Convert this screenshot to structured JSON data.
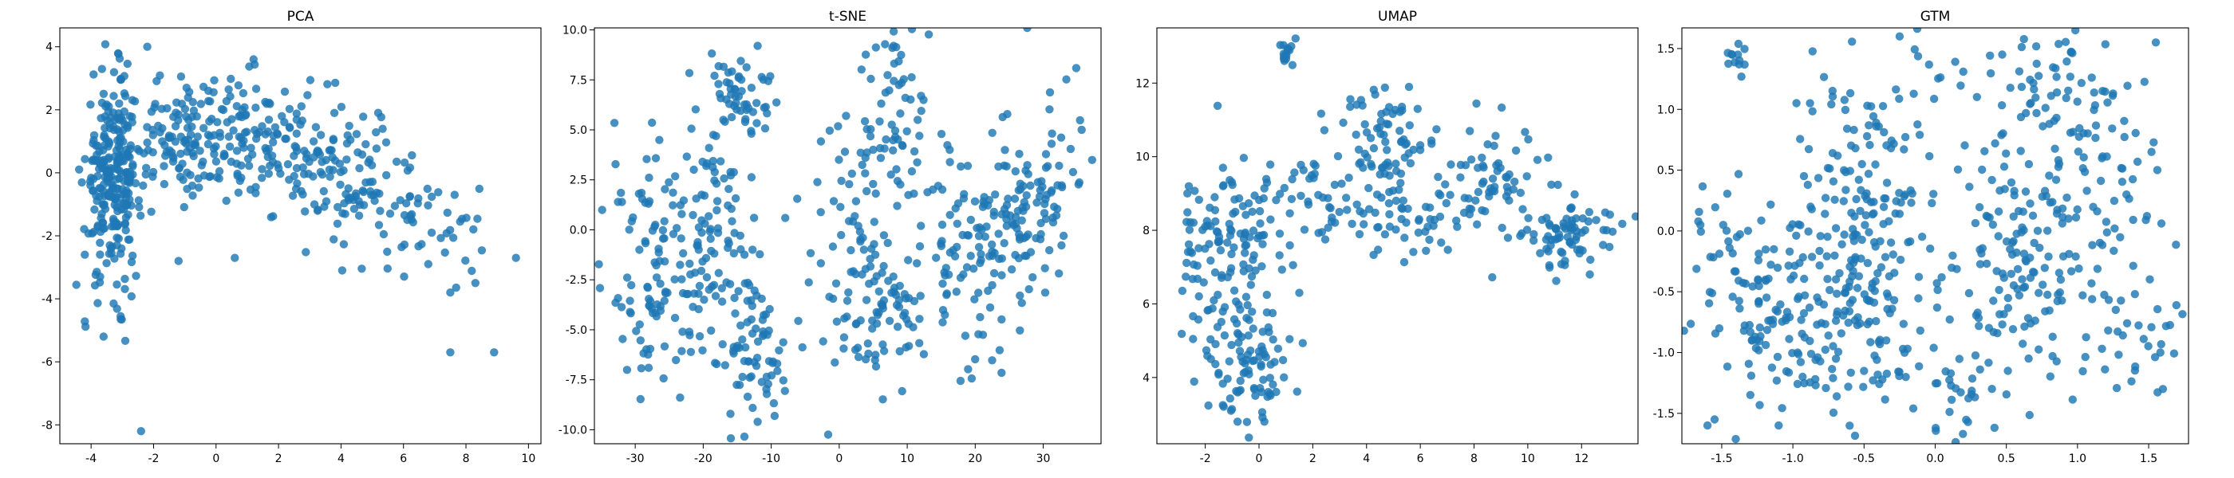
{
  "chart_data": [
    {
      "type": "scatter",
      "title": "PCA",
      "xlabel": "",
      "ylabel": "",
      "xlim": [
        -5,
        10.4
      ],
      "ylim": [
        -8.6,
        4.6
      ],
      "xticks": [
        -4,
        -2,
        0,
        2,
        4,
        6,
        8,
        10
      ],
      "yticks": [
        -8,
        -6,
        -4,
        -2,
        0,
        2,
        4
      ],
      "grid": false,
      "marker_color": "#1f77b4",
      "clusters": [
        {
          "cx": -3.3,
          "cy": -0.3,
          "sx": 0.45,
          "sy": 1.6,
          "n": 260
        },
        {
          "cx": -1.0,
          "cy": 1.1,
          "sx": 1.2,
          "sy": 0.9,
          "n": 120
        },
        {
          "cx": 1.2,
          "cy": 1.2,
          "sx": 1.2,
          "sy": 1.0,
          "n": 120
        },
        {
          "cx": 4.0,
          "cy": -0.1,
          "sx": 1.3,
          "sy": 1.0,
          "n": 110
        },
        {
          "cx": 6.6,
          "cy": -1.8,
          "sx": 1.1,
          "sy": 0.9,
          "n": 45
        }
      ],
      "points": [
        {
          "x": -2.4,
          "y": -8.2
        },
        {
          "x": 7.5,
          "y": -5.7
        },
        {
          "x": 8.9,
          "y": -5.7
        },
        {
          "x": -3.6,
          "y": -5.2
        },
        {
          "x": 9.6,
          "y": -2.7
        },
        {
          "x": -2.2,
          "y": 4.0
        },
        {
          "x": 1.2,
          "y": 3.6
        },
        {
          "x": 7.5,
          "y": -3.8
        },
        {
          "x": 8.3,
          "y": -3.5
        },
        {
          "x": -4.2,
          "y": -2.6
        },
        {
          "x": 0.6,
          "y": -2.7
        },
        {
          "x": -1.2,
          "y": -2.8
        }
      ]
    },
    {
      "type": "scatter",
      "title": "t-SNE",
      "xlabel": "",
      "ylabel": "",
      "xlim": [
        -36,
        38.5
      ],
      "ylim": [
        -10.7,
        10.1
      ],
      "xticks": [
        -30,
        -20,
        -10,
        0,
        10,
        20,
        30
      ],
      "yticks": [
        -10.0,
        -7.5,
        -5.0,
        -2.5,
        0.0,
        2.5,
        5.0,
        7.5,
        10.0
      ],
      "grid": false,
      "marker_color": "#1f77b4",
      "clusters": [
        {
          "cx": -27,
          "cy": -1.5,
          "sx": 3.5,
          "sy": 3.0,
          "n": 110
        },
        {
          "cx": -18,
          "cy": 0.5,
          "sx": 3.0,
          "sy": 4.0,
          "n": 100
        },
        {
          "cx": -13,
          "cy": -5.5,
          "sx": 2.5,
          "sy": 2.5,
          "n": 70
        },
        {
          "cx": -14,
          "cy": 6.8,
          "sx": 2.2,
          "sy": 1.2,
          "n": 40
        },
        {
          "cx": 2,
          "cy": -0.5,
          "sx": 3.0,
          "sy": 3.5,
          "n": 70
        },
        {
          "cx": 9,
          "cy": 5.5,
          "sx": 3.0,
          "sy": 2.5,
          "n": 60
        },
        {
          "cx": 7,
          "cy": -4.0,
          "sx": 3.0,
          "sy": 2.0,
          "n": 60
        },
        {
          "cx": 20,
          "cy": -1.5,
          "sx": 4.0,
          "sy": 3.0,
          "n": 100
        },
        {
          "cx": 28,
          "cy": 2.0,
          "sx": 4.0,
          "sy": 2.5,
          "n": 100
        }
      ],
      "points": [
        {
          "x": -12,
          "y": 9.2
        },
        {
          "x": -12,
          "y": -9.6
        },
        {
          "x": 8,
          "y": 9.2
        },
        {
          "x": -16,
          "y": -9.2
        },
        {
          "x": 1,
          "y": 5.7
        },
        {
          "x": 33,
          "y": -0.3
        }
      ]
    },
    {
      "type": "scatter",
      "title": "UMAP",
      "xlabel": "",
      "ylabel": "",
      "xlim": [
        -3.8,
        14.1
      ],
      "ylim": [
        2.2,
        13.5
      ],
      "xticks": [
        -2,
        0,
        2,
        4,
        6,
        8,
        10,
        12
      ],
      "yticks": [
        4,
        6,
        8,
        10,
        12
      ],
      "grid": false,
      "marker_color": "#1f77b4",
      "clusters": [
        {
          "cx": 1.0,
          "cy": 12.7,
          "sx": 0.15,
          "sy": 0.22,
          "n": 14
        },
        {
          "cx": -1.5,
          "cy": 7.5,
          "sx": 0.9,
          "sy": 1.3,
          "n": 90
        },
        {
          "cx": -0.5,
          "cy": 4.5,
          "sx": 0.9,
          "sy": 0.9,
          "n": 90
        },
        {
          "cx": 0.0,
          "cy": 8.0,
          "sx": 0.6,
          "sy": 0.8,
          "n": 40
        },
        {
          "cx": 2.5,
          "cy": 8.8,
          "sx": 0.9,
          "sy": 0.7,
          "n": 40
        },
        {
          "cx": 4.8,
          "cy": 10.5,
          "sx": 0.9,
          "sy": 0.8,
          "n": 60
        },
        {
          "cx": 5.5,
          "cy": 8.5,
          "sx": 1.2,
          "sy": 0.9,
          "n": 60
        },
        {
          "cx": 8.3,
          "cy": 9.2,
          "sx": 1.2,
          "sy": 0.8,
          "n": 60
        },
        {
          "cx": 11.5,
          "cy": 8.0,
          "sx": 1.0,
          "sy": 0.6,
          "n": 80
        }
      ],
      "points": [
        {
          "x": 1.2,
          "y": 13.0
        },
        {
          "x": -0.8,
          "y": 2.8
        },
        {
          "x": 0.2,
          "y": 2.8
        },
        {
          "x": 12.8,
          "y": 7.6
        },
        {
          "x": 1.5,
          "y": 6.3
        }
      ]
    },
    {
      "type": "scatter",
      "title": "GTM",
      "xlabel": "",
      "ylabel": "",
      "xlim": [
        -1.78,
        1.78
      ],
      "ylim": [
        -1.75,
        1.67
      ],
      "xticks": [
        -1.5,
        -1.0,
        -0.5,
        0.0,
        0.5,
        1.0,
        1.5
      ],
      "yticks": [
        -1.5,
        -1.0,
        -0.5,
        0.0,
        0.5,
        1.0,
        1.5
      ],
      "grid": false,
      "marker_color": "#1f77b4",
      "clusters": [
        {
          "cx": -1.35,
          "cy": -0.5,
          "sx": 0.2,
          "sy": 0.5,
          "n": 70
        },
        {
          "cx": -0.9,
          "cy": -0.7,
          "sx": 0.25,
          "sy": 0.5,
          "n": 90
        },
        {
          "cx": -0.55,
          "cy": 0.0,
          "sx": 0.2,
          "sy": 0.6,
          "n": 120
        },
        {
          "cx": -0.3,
          "cy": -1.0,
          "sx": 0.3,
          "sy": 0.35,
          "n": 50
        },
        {
          "cx": -1.4,
          "cy": 1.42,
          "sx": 0.04,
          "sy": 0.06,
          "n": 12
        },
        {
          "cx": -0.3,
          "cy": 0.8,
          "sx": 0.3,
          "sy": 0.5,
          "n": 60
        },
        {
          "cx": 0.6,
          "cy": -0.3,
          "sx": 0.25,
          "sy": 0.4,
          "n": 100
        },
        {
          "cx": 1.0,
          "cy": 0.5,
          "sx": 0.3,
          "sy": 0.5,
          "n": 90
        },
        {
          "cx": 0.8,
          "cy": 1.2,
          "sx": 0.35,
          "sy": 0.25,
          "n": 50
        },
        {
          "cx": 1.3,
          "cy": -0.8,
          "sx": 0.25,
          "sy": 0.4,
          "n": 40
        },
        {
          "cx": 0.2,
          "cy": -1.2,
          "sx": 0.2,
          "sy": 0.25,
          "n": 20
        }
      ],
      "points": [
        {
          "x": -1.6,
          "y": -1.6
        },
        {
          "x": -1.1,
          "y": -1.6
        },
        {
          "x": 1.55,
          "y": 1.55
        },
        {
          "x": -0.25,
          "y": 1.6
        },
        {
          "x": 1.6,
          "y": -1.3
        },
        {
          "x": -1.55,
          "y": -1.55
        },
        {
          "x": 1.52,
          "y": 0.65
        },
        {
          "x": -1.65,
          "y": 0.05
        }
      ]
    }
  ]
}
